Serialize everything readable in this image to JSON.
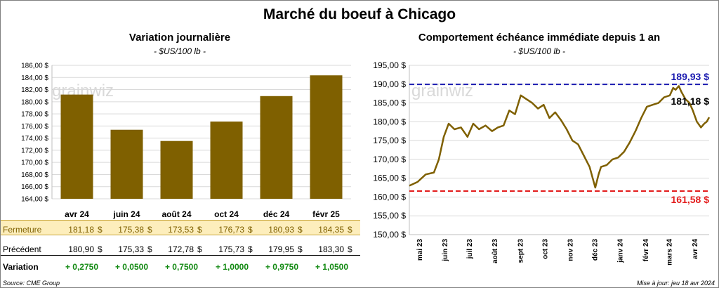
{
  "title": "Marché du boeuf à Chicago",
  "left_chart_title": "Variation journalière",
  "left_chart_unit": "- $US/100 lb -",
  "right_chart_title": "Comportement échéance immédiate depuis 1 an",
  "right_chart_unit": "- $US/100 lb -",
  "watermark": "grainwiz",
  "colors": {
    "bar": "#7f6000",
    "line": "#7f6000",
    "high": "#1b1bb0",
    "low": "#e31c1c",
    "positive": "#138a13",
    "highlight": "#fdeebc"
  },
  "table": {
    "rows": [
      {
        "label": "Fermeture",
        "values": [
          "181,18",
          "175,38",
          "173,53",
          "176,73",
          "180,93",
          "184,35"
        ],
        "unit": "$",
        "highlight": true
      },
      {
        "label": "Précédent",
        "values": [
          "180,90",
          "175,33",
          "172,78",
          "175,73",
          "179,95",
          "183,30"
        ],
        "unit": "$",
        "highlight": false
      },
      {
        "label": "Variation",
        "values": [
          "+ 0,2750",
          "+ 0,0500",
          "+ 0,7500",
          "+ 1,0000",
          "+ 0,9750",
          "+ 1,0500"
        ],
        "unit": "",
        "highlight": false
      }
    ]
  },
  "footer": {
    "source": "Source: CME Group",
    "updated": "Mise à jour: jeu 18 avr 2024"
  },
  "chart_data": [
    {
      "type": "bar",
      "title": "Variation journalière",
      "subtitle": "- $US/100 lb -",
      "categories": [
        "avr 24",
        "juin 24",
        "août 24",
        "oct 24",
        "déc 24",
        "févr 25"
      ],
      "values": [
        181.18,
        175.38,
        173.53,
        176.73,
        180.93,
        184.35
      ],
      "ylim": [
        164,
        186
      ],
      "yticks": [
        164,
        166,
        168,
        170,
        172,
        174,
        176,
        178,
        180,
        182,
        184,
        186
      ],
      "ytick_labels": [
        "164,00 $",
        "166,00 $",
        "168,00 $",
        "170,00 $",
        "172,00 $",
        "174,00 $",
        "176,00 $",
        "178,00 $",
        "180,00 $",
        "182,00 $",
        "184,00 $",
        "186,00 $"
      ],
      "grid": true
    },
    {
      "type": "line",
      "title": "Comportement échéance immédiate depuis 1 an",
      "subtitle": "- $US/100 lb -",
      "x": [
        "2023-04-18",
        "2023-04-28",
        "2023-05-08",
        "2023-05-18",
        "2023-05-24",
        "2023-05-30",
        "2023-06-05",
        "2023-06-12",
        "2023-06-20",
        "2023-06-28",
        "2023-07-05",
        "2023-07-12",
        "2023-07-20",
        "2023-07-28",
        "2023-08-04",
        "2023-08-11",
        "2023-08-18",
        "2023-08-25",
        "2023-09-01",
        "2023-09-08",
        "2023-09-15",
        "2023-09-22",
        "2023-09-29",
        "2023-10-06",
        "2023-10-13",
        "2023-10-20",
        "2023-10-27",
        "2023-11-03",
        "2023-11-10",
        "2023-11-17",
        "2023-11-24",
        "2023-12-01",
        "2023-12-05",
        "2023-12-08",
        "2023-12-15",
        "2023-12-22",
        "2023-12-29",
        "2024-01-05",
        "2024-01-12",
        "2024-01-19",
        "2024-01-26",
        "2024-02-02",
        "2024-02-09",
        "2024-02-16",
        "2024-02-23",
        "2024-03-01",
        "2024-03-05",
        "2024-03-08",
        "2024-03-12",
        "2024-03-15",
        "2024-03-20",
        "2024-03-25",
        "2024-03-29",
        "2024-04-03",
        "2024-04-08",
        "2024-04-12",
        "2024-04-15",
        "2024-04-18"
      ],
      "y": [
        163.0,
        164.0,
        166.0,
        166.5,
        170.0,
        176.0,
        179.5,
        178.0,
        178.5,
        176.0,
        179.5,
        178.0,
        179.0,
        177.5,
        178.5,
        179.0,
        183.0,
        182.0,
        187.0,
        186.0,
        185.0,
        183.5,
        184.5,
        181.0,
        182.5,
        180.5,
        178.0,
        175.0,
        174.0,
        171.0,
        168.0,
        162.5,
        166.0,
        168.0,
        168.5,
        170.0,
        170.5,
        172.0,
        174.5,
        177.5,
        181.0,
        184.0,
        184.5,
        185.0,
        186.5,
        187.0,
        189.0,
        188.5,
        189.5,
        188.0,
        186.0,
        185.0,
        183.0,
        180.0,
        178.5,
        179.5,
        180.0,
        181.18
      ],
      "xtick_labels": [
        "mai 23",
        "juin 23",
        "juil 23",
        "août 23",
        "sept 23",
        "oct 23",
        "nov 23",
        "déc 23",
        "janv 24",
        "févr 24",
        "mars 24",
        "avr 24"
      ],
      "xtick_dates": [
        "2023-05-01",
        "2023-06-01",
        "2023-07-01",
        "2023-08-01",
        "2023-09-01",
        "2023-10-01",
        "2023-11-01",
        "2023-12-01",
        "2024-01-01",
        "2024-02-01",
        "2024-03-01",
        "2024-04-01"
      ],
      "ylim": [
        150,
        195
      ],
      "yticks": [
        150,
        155,
        160,
        165,
        170,
        175,
        180,
        185,
        190,
        195
      ],
      "ytick_labels": [
        "150,00 $",
        "155,00 $",
        "160,00 $",
        "165,00 $",
        "170,00 $",
        "175,00 $",
        "180,00 $",
        "185,00 $",
        "190,00 $",
        "195,00 $"
      ],
      "high": {
        "value": 189.93,
        "label": "189,93 $"
      },
      "low": {
        "value": 161.58,
        "label": "161,58 $"
      },
      "last": {
        "value": 181.18,
        "label": "181,18 $"
      },
      "grid": true
    }
  ]
}
